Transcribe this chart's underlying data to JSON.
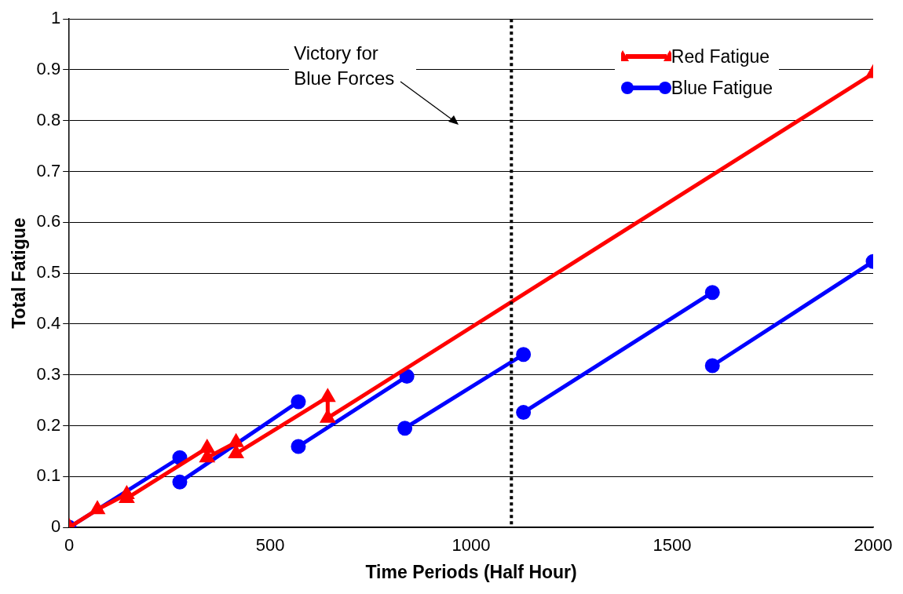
{
  "chart_data": {
    "type": "line",
    "xlabel": "Time Periods (Half Hour)",
    "ylabel": "Total Fatigue",
    "xlim": [
      0,
      2000
    ],
    "xticks": [
      0,
      500,
      1000,
      1500,
      2000
    ],
    "ylim": [
      0,
      1
    ],
    "yticks": [
      0,
      0.1,
      0.2,
      0.3,
      0.4,
      0.5,
      0.6,
      0.7,
      0.8,
      0.9,
      1
    ],
    "grid": "y",
    "legend": "top right",
    "line_style": "solid",
    "series": [
      {
        "name": "Red Fatigue",
        "color": "#ff0000",
        "marker": "triangle",
        "x": [
          0,
          70,
          143,
          143,
          343,
          343,
          415,
          415,
          643,
          643,
          2000
        ],
        "values": [
          0,
          0.035,
          0.065,
          0.057,
          0.156,
          0.137,
          0.167,
          0.145,
          0.256,
          0.215,
          0.893
        ]
      },
      {
        "name": "Blue Fatigue",
        "color": "#0000ff",
        "marker": "circle",
        "x": [
          0,
          275,
          null,
          275,
          570,
          null,
          570,
          840,
          null,
          835,
          1130,
          null,
          1130,
          1600,
          null,
          1600,
          2000
        ],
        "values": [
          0,
          0.137,
          null,
          0.089,
          0.247,
          null,
          0.159,
          0.297,
          null,
          0.195,
          0.34,
          null,
          0.226,
          0.462,
          null,
          0.318,
          0.523
        ]
      }
    ],
    "ref_lines": [
      {
        "axis": "x",
        "value": 1100,
        "color": "#000000",
        "line_style": "dotted"
      }
    ],
    "annotations": [
      "Victory for Blue Forces"
    ]
  }
}
